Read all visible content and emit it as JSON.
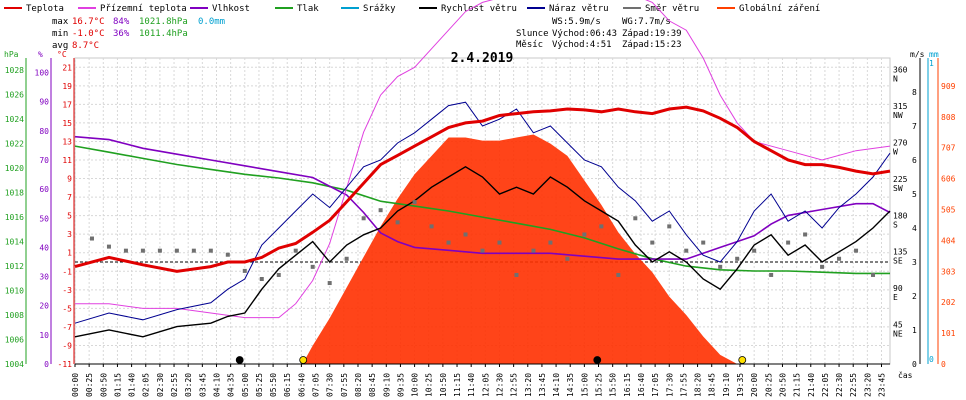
{
  "legend": [
    {
      "label": "Teplota",
      "color": "#e00000"
    },
    {
      "label": "Přízemní teplota",
      "color": "#e040e0"
    },
    {
      "label": "Vlhkost",
      "color": "#8000c0"
    },
    {
      "label": "Tlak",
      "color": "#20a020"
    },
    {
      "label": "Srážky",
      "color": "#00a0d0"
    },
    {
      "label": "Rychlost větru",
      "color": "#000000"
    },
    {
      "label": "Náraz větru",
      "color": "#000090"
    },
    {
      "label": "Směr větru",
      "color": "#707070"
    },
    {
      "label": "Globální záření",
      "color": "#ff4000"
    }
  ],
  "stats": {
    "max_label": "max",
    "min_label": "min",
    "avg_label": "avg",
    "max_temp": "16.7°C",
    "min_temp": "-1.0°C",
    "avg_temp": "8.7°C",
    "max_hum": "84%",
    "min_hum": "36%",
    "max_press": "1021.8hPa",
    "min_press": "1011.4hPa",
    "max_rain": "0.0mm"
  },
  "wind": {
    "ws": "WS:5.9m/s",
    "wg": "WG:7.7m/s"
  },
  "sun": {
    "label": "Slunce",
    "rise": "Východ:06:43",
    "set": "Západ:19:39"
  },
  "moon": {
    "label": "Měsíc",
    "rise": "Východ:4:51",
    "set": "Západ:15:23"
  },
  "date": "2.4.2019",
  "xlabel": "čas",
  "axes": {
    "press_unit": "hPa",
    "hum_unit": "%",
    "temp_unit": "°C",
    "wind_unit": "m/s",
    "rain_unit": "mm",
    "press_ticks": [
      "1028",
      "1026",
      "1024",
      "1022",
      "1020",
      "1018",
      "1016",
      "1014",
      "1012",
      "1010",
      "1008",
      "1006",
      "1004"
    ],
    "hum_ticks": [
      "100",
      "90",
      "80",
      "70",
      "60",
      "50",
      "40",
      "30",
      "20",
      "10",
      "0"
    ],
    "temp_ticks": [
      "21",
      "19",
      "17",
      "15",
      "13",
      "11",
      "9",
      "7",
      "5",
      "3",
      "1",
      "-1",
      "-3",
      "-5",
      "-7",
      "-9",
      "-11"
    ],
    "dir_ticks": [
      {
        "deg": "360",
        "dir": "N"
      },
      {
        "deg": "315",
        "dir": "NW"
      },
      {
        "deg": "270",
        "dir": "W"
      },
      {
        "deg": "225",
        "dir": "SW"
      },
      {
        "deg": "180",
        "dir": "S"
      },
      {
        "deg": "135",
        "dir": "SE"
      },
      {
        "deg": "90",
        "dir": "E"
      },
      {
        "deg": "45",
        "dir": "NE"
      }
    ],
    "wind_ticks": [
      "8",
      "7",
      "6",
      "5",
      "4",
      "3",
      "2",
      "1",
      "0"
    ],
    "rain_ticks": [
      "1",
      "0"
    ],
    "rad_ticks": [
      "909",
      "808",
      "707",
      "606",
      "505",
      "404",
      "303",
      "202",
      "101",
      "0"
    ],
    "time_ticks": [
      "00:00",
      "00:25",
      "00:50",
      "01:15",
      "01:40",
      "02:05",
      "02:30",
      "02:55",
      "03:20",
      "03:45",
      "04:10",
      "04:35",
      "05:00",
      "05:25",
      "05:50",
      "06:15",
      "06:40",
      "07:05",
      "07:30",
      "07:55",
      "08:20",
      "08:45",
      "09:10",
      "09:35",
      "10:00",
      "10:25",
      "10:50",
      "11:15",
      "11:40",
      "12:05",
      "12:30",
      "12:55",
      "13:20",
      "13:45",
      "14:10",
      "14:35",
      "15:00",
      "15:25",
      "15:50",
      "16:15",
      "16:40",
      "17:05",
      "17:30",
      "17:55",
      "18:20",
      "18:45",
      "19:10",
      "19:35",
      "20:00",
      "20:25",
      "20:50",
      "21:15",
      "21:40",
      "22:05",
      "22:30",
      "22:55",
      "23:20",
      "23:45"
    ]
  },
  "chart_data": {
    "type": "line",
    "title": "2.4.2019",
    "xlabel": "čas",
    "x_unit": "hours",
    "xlim": [
      0,
      24
    ],
    "temp_ylim": [
      -11,
      22
    ],
    "press_ylim": [
      1004,
      1029
    ],
    "hum_ylim": [
      0,
      105
    ],
    "wind_ylim": [
      0,
      9
    ],
    "dir_ylim": [
      0,
      378
    ],
    "rad_ylim": [
      0,
      1000
    ],
    "series": [
      {
        "name": "Teplota",
        "unit": "°C",
        "x": [
          0,
          1,
          2,
          3,
          4,
          4.5,
          5,
          5.5,
          6,
          6.5,
          7,
          7.5,
          8,
          8.5,
          9,
          9.5,
          10,
          10.5,
          11,
          11.5,
          12,
          12.5,
          13,
          13.5,
          14,
          14.5,
          15,
          15.5,
          16,
          16.5,
          17,
          17.5,
          18,
          18.5,
          19,
          19.5,
          20,
          20.5,
          21,
          21.5,
          22,
          22.5,
          23,
          23.5,
          24
        ],
        "y": [
          -0.5,
          0.5,
          -0.3,
          -1.0,
          -0.5,
          0,
          0,
          0.5,
          1.5,
          2.0,
          3.2,
          4.5,
          6.5,
          8.5,
          10.5,
          11.5,
          12.5,
          13.5,
          14.5,
          15.0,
          15.2,
          15.8,
          16.0,
          16.2,
          16.3,
          16.5,
          16.4,
          16.2,
          16.5,
          16.2,
          16.0,
          16.5,
          16.7,
          16.3,
          15.5,
          14.5,
          13.0,
          12.0,
          11.0,
          10.5,
          10.5,
          10.2,
          9.8,
          9.5,
          9.8
        ]
      },
      {
        "name": "Přízemní teplota",
        "unit": "°C",
        "x": [
          0,
          1,
          2,
          3,
          4,
          5,
          6,
          6.5,
          7,
          7.5,
          8,
          8.5,
          9,
          9.5,
          10,
          10.5,
          11,
          11.5,
          12,
          13,
          14,
          15,
          16,
          17,
          17.5,
          18,
          18.5,
          19,
          19.5,
          20,
          21,
          22,
          23,
          24
        ],
        "y": [
          -4.5,
          -4.5,
          -5,
          -5,
          -5.5,
          -6,
          -6,
          -4.5,
          -2,
          2,
          8,
          14,
          18,
          20,
          21,
          23,
          25,
          27,
          28,
          29,
          30,
          30,
          29.5,
          28,
          26,
          25,
          22,
          18,
          15,
          13,
          12,
          11,
          12,
          12.5
        ]
      },
      {
        "name": "Vlhkost",
        "unit": "%",
        "x": [
          0,
          1,
          2,
          3,
          4,
          5,
          6,
          7,
          8,
          8.5,
          9,
          9.5,
          10,
          11,
          12,
          13,
          14,
          15,
          16,
          17,
          18,
          18.5,
          19,
          19.5,
          20,
          20.5,
          21,
          22,
          23,
          23.5,
          24
        ],
        "y": [
          78,
          77,
          74,
          72,
          70,
          68,
          66,
          64,
          58,
          52,
          45,
          42,
          40,
          39,
          38,
          38,
          38,
          37,
          36,
          36,
          36,
          38,
          40,
          42,
          44,
          48,
          51,
          53,
          55,
          55,
          52
        ]
      },
      {
        "name": "Tlak",
        "unit": "hPa",
        "x": [
          0,
          1,
          2,
          3,
          4,
          5,
          6,
          7,
          8,
          9,
          10,
          11,
          12,
          13,
          14,
          15,
          16,
          17,
          18,
          19,
          20,
          21,
          22,
          23,
          24
        ],
        "y": [
          1021.8,
          1021.3,
          1020.8,
          1020.3,
          1019.9,
          1019.5,
          1019.2,
          1018.8,
          1018.2,
          1017.3,
          1016.9,
          1016.5,
          1016.0,
          1015.5,
          1015.0,
          1014.3,
          1013.4,
          1012.6,
          1012.0,
          1011.7,
          1011.6,
          1011.6,
          1011.5,
          1011.4,
          1011.4
        ]
      },
      {
        "name": "Srážky",
        "unit": "mm",
        "x": [
          0,
          24
        ],
        "y": [
          0.0,
          0.0
        ]
      },
      {
        "name": "Globální záření",
        "unit": "W/m2",
        "x": [
          6.7,
          7,
          7.5,
          8,
          8.5,
          9,
          9.5,
          10,
          10.5,
          11,
          11.5,
          12,
          12.5,
          13,
          13.5,
          14,
          14.5,
          15,
          15.5,
          16,
          16.5,
          17,
          17.5,
          18,
          18.5,
          19,
          19.5
        ],
        "y": [
          0,
          60,
          150,
          250,
          350,
          450,
          540,
          620,
          680,
          740,
          740,
          730,
          730,
          740,
          750,
          720,
          680,
          600,
          520,
          430,
          360,
          300,
          220,
          160,
          90,
          30,
          0
        ]
      },
      {
        "name": "Rychlost větru",
        "unit": "m/s",
        "x": [
          0,
          1,
          2,
          3,
          4,
          4.5,
          5,
          5.5,
          6,
          6.5,
          7,
          7.5,
          8,
          8.5,
          9,
          9.5,
          10,
          10.5,
          11,
          11.5,
          12,
          12.5,
          13,
          13.5,
          14,
          14.5,
          15,
          15.5,
          16,
          16.5,
          17,
          17.5,
          18,
          18.5,
          19,
          19.5,
          20,
          20.5,
          21,
          21.5,
          22,
          22.5,
          23,
          23.5,
          24
        ],
        "y": [
          0.8,
          1.0,
          0.8,
          1.1,
          1.2,
          1.4,
          1.5,
          2.2,
          2.8,
          3.2,
          3.6,
          3.0,
          3.5,
          3.8,
          4.0,
          4.5,
          4.8,
          5.2,
          5.5,
          5.8,
          5.5,
          5.0,
          5.2,
          5.0,
          5.5,
          5.2,
          4.8,
          4.5,
          4.2,
          3.5,
          3.0,
          3.3,
          3.0,
          2.5,
          2.2,
          2.8,
          3.5,
          3.8,
          3.2,
          3.5,
          3.0,
          3.3,
          3.6,
          4.0,
          4.5
        ]
      },
      {
        "name": "Náraz větru",
        "unit": "m/s",
        "x": [
          0,
          1,
          2,
          3,
          4,
          4.5,
          5,
          5.5,
          6,
          6.5,
          7,
          7.5,
          8,
          8.5,
          9,
          9.5,
          10,
          10.5,
          11,
          11.5,
          12,
          12.5,
          13,
          13.5,
          14,
          14.5,
          15,
          15.5,
          16,
          16.5,
          17,
          17.5,
          18,
          18.5,
          19,
          19.5,
          20,
          20.5,
          21,
          21.5,
          22,
          22.5,
          23,
          23.5,
          24
        ],
        "y": [
          1.2,
          1.5,
          1.3,
          1.6,
          1.8,
          2.2,
          2.5,
          3.5,
          4.0,
          4.5,
          5.0,
          4.6,
          5.2,
          5.8,
          6.0,
          6.5,
          6.8,
          7.2,
          7.6,
          7.7,
          7.0,
          7.2,
          7.5,
          6.8,
          7.0,
          6.5,
          6.0,
          5.8,
          5.2,
          4.8,
          4.2,
          4.5,
          3.8,
          3.2,
          3.0,
          3.6,
          4.5,
          5.0,
          4.2,
          4.5,
          4.0,
          4.6,
          5.0,
          5.5,
          6.2
        ]
      },
      {
        "name": "Směr větru",
        "unit": "°",
        "x": [
          0.5,
          1,
          1.5,
          2,
          2.5,
          3,
          3.5,
          4,
          4.5,
          5,
          5.5,
          6,
          6.5,
          7,
          7.5,
          8,
          8.5,
          9,
          9.5,
          10,
          10.5,
          11,
          11.5,
          12,
          12.5,
          13,
          13.5,
          14,
          14.5,
          15,
          15.5,
          16,
          16.5,
          17,
          17.5,
          18,
          18.5,
          19,
          19.5,
          20,
          20.5,
          21,
          21.5,
          22,
          22.5,
          23,
          23.5
        ],
        "y": [
          155,
          145,
          140,
          140,
          140,
          140,
          140,
          140,
          135,
          115,
          105,
          110,
          140,
          120,
          100,
          130,
          180,
          190,
          175,
          200,
          170,
          150,
          160,
          140,
          150,
          110,
          140,
          150,
          130,
          160,
          170,
          110,
          180,
          150,
          170,
          140,
          150,
          120,
          130,
          140,
          110,
          150,
          160,
          120,
          130,
          140,
          110
        ]
      }
    ],
    "annotations": [
      "Východ 06:43",
      "Západ 19:39",
      "Východ 4:51",
      "Západ 15:23"
    ]
  }
}
